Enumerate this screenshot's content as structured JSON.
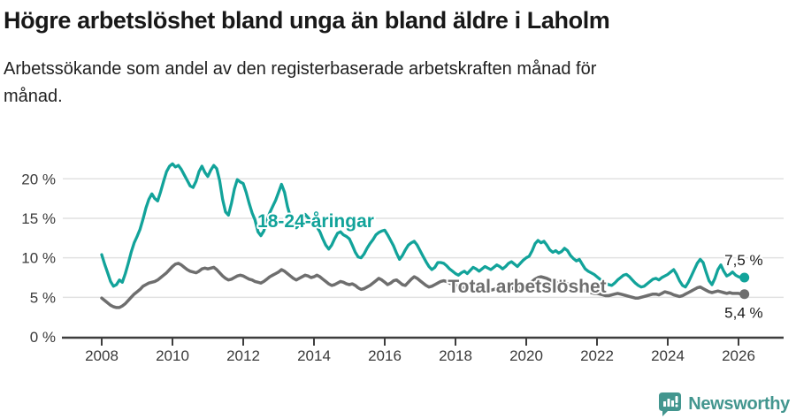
{
  "title": "Högre arbetslöshet bland unga än bland äldre i Laholm",
  "subtitle_lines": [
    "Arbetssökande som andel av den registerbaserade arbetskraften månad för",
    "månad."
  ],
  "colors": {
    "young_line": "#12a39a",
    "total_line": "#6e6e6e",
    "grid": "#e1e1e1",
    "axis": "#3d3d3d",
    "axis_text": "#3a3a3a",
    "value_text": "#1a1a1a",
    "brand": "#43968f"
  },
  "footer": {
    "brand_name": "Newsworthy",
    "brand_icon": "bar-chart-speech-bubble-icon"
  },
  "chart_data": {
    "type": "line",
    "title": "Högre arbetslöshet bland unga än bland äldre i Laholm",
    "subtitle": "Arbetssökande som andel av den registerbaserade arbetskraften månad för månad.",
    "x_unit": "month",
    "x_start_year": 2008,
    "x_ticks": [
      2008,
      2010,
      2012,
      2014,
      2016,
      2018,
      2020,
      2022,
      2024,
      2026
    ],
    "y_ticks": [
      {
        "v": 0,
        "label": "0 %"
      },
      {
        "v": 5,
        "label": "5 %"
      },
      {
        "v": 10,
        "label": "10 %"
      },
      {
        "v": 15,
        "label": "15 %"
      },
      {
        "v": 20,
        "label": "20 %"
      }
    ],
    "ylim": [
      0,
      22.8
    ],
    "grid": true,
    "legend_position": "inline-labels",
    "series": [
      {
        "name": "18-24-åringar",
        "end_label": "7,5 %",
        "end_value": 7.5,
        "values": [
          10.4,
          9.2,
          8.1,
          7.0,
          6.4,
          6.6,
          7.2,
          6.9,
          8.0,
          9.3,
          10.7,
          11.9,
          12.7,
          13.6,
          14.9,
          16.3,
          17.4,
          18.1,
          17.5,
          17.2,
          18.4,
          19.7,
          20.9,
          21.6,
          21.9,
          21.5,
          21.7,
          21.2,
          20.5,
          19.8,
          19.1,
          18.9,
          19.7,
          20.9,
          21.6,
          20.8,
          20.3,
          21.1,
          21.7,
          21.3,
          19.8,
          17.4,
          15.8,
          15.4,
          16.9,
          18.7,
          19.9,
          19.6,
          19.4,
          18.3,
          16.9,
          15.7,
          14.8,
          13.3,
          12.8,
          13.4,
          14.7,
          15.7,
          16.5,
          17.3,
          18.3,
          19.3,
          18.3,
          16.5,
          15.2,
          14.3,
          13.8,
          14.2,
          14.9,
          15.5,
          15.1,
          14.6,
          14.4,
          13.9,
          13.3,
          12.4,
          11.6,
          11.1,
          11.6,
          12.4,
          13.1,
          13.3,
          12.9,
          12.7,
          12.4,
          11.6,
          10.7,
          10.1,
          10.0,
          10.5,
          11.2,
          11.8,
          12.3,
          12.9,
          13.2,
          13.4,
          13.5,
          12.9,
          12.2,
          11.5,
          10.6,
          9.8,
          10.3,
          11.0,
          11.6,
          11.9,
          12.1,
          11.6,
          10.9,
          10.2,
          9.5,
          8.9,
          8.5,
          8.8,
          9.4,
          9.4,
          9.3,
          9.0,
          8.6,
          8.3,
          8.0,
          7.8,
          8.1,
          8.3,
          8.0,
          8.4,
          8.8,
          8.6,
          8.3,
          8.6,
          8.9,
          8.7,
          8.5,
          8.8,
          9.1,
          8.9,
          8.6,
          8.9,
          9.3,
          9.5,
          9.2,
          8.9,
          9.3,
          9.7,
          10.0,
          10.2,
          10.9,
          11.8,
          12.2,
          11.9,
          12.1,
          11.6,
          11.0,
          10.7,
          10.9,
          10.6,
          10.8,
          11.2,
          10.9,
          10.3,
          9.9,
          9.6,
          9.8,
          9.2,
          8.6,
          8.3,
          8.1,
          7.9,
          7.6,
          7.3,
          7.0,
          6.8,
          6.6,
          6.5,
          6.8,
          7.2,
          7.5,
          7.8,
          7.9,
          7.6,
          7.2,
          6.8,
          6.5,
          6.3,
          6.4,
          6.7,
          7.0,
          7.3,
          7.4,
          7.2,
          7.5,
          7.7,
          7.9,
          8.2,
          8.5,
          7.9,
          7.1,
          6.5,
          6.3,
          6.9,
          7.7,
          8.5,
          9.3,
          9.8,
          9.4,
          8.2,
          7.1,
          6.6,
          7.4,
          8.5,
          9.1,
          8.3,
          7.7,
          7.9,
          8.2,
          7.8,
          7.6,
          7.5,
          7.5
        ]
      },
      {
        "name": "Total arbetslöshet",
        "end_label": "5,4 %",
        "end_value": 5.4,
        "values": [
          4.9,
          4.6,
          4.3,
          4.0,
          3.8,
          3.7,
          3.7,
          3.9,
          4.2,
          4.6,
          5.0,
          5.4,
          5.7,
          6.0,
          6.4,
          6.6,
          6.8,
          6.9,
          7.0,
          7.2,
          7.5,
          7.8,
          8.1,
          8.5,
          8.9,
          9.2,
          9.3,
          9.1,
          8.8,
          8.5,
          8.3,
          8.2,
          8.1,
          8.3,
          8.6,
          8.7,
          8.6,
          8.7,
          8.8,
          8.5,
          8.1,
          7.7,
          7.4,
          7.2,
          7.3,
          7.5,
          7.7,
          7.8,
          7.7,
          7.5,
          7.3,
          7.2,
          7.0,
          6.9,
          6.8,
          7.0,
          7.3,
          7.6,
          7.8,
          8.0,
          8.2,
          8.5,
          8.3,
          8.0,
          7.7,
          7.4,
          7.2,
          7.4,
          7.6,
          7.8,
          7.7,
          7.5,
          7.6,
          7.8,
          7.6,
          7.3,
          7.0,
          6.7,
          6.5,
          6.6,
          6.8,
          7.0,
          6.9,
          6.7,
          6.6,
          6.7,
          6.5,
          6.2,
          6.0,
          6.1,
          6.3,
          6.5,
          6.8,
          7.1,
          7.4,
          7.2,
          6.9,
          6.6,
          6.8,
          7.1,
          7.2,
          6.9,
          6.6,
          6.5,
          6.9,
          7.3,
          7.6,
          7.4,
          7.1,
          6.8,
          6.5,
          6.3,
          6.4,
          6.6,
          6.8,
          7.0,
          7.1,
          7.0,
          6.8,
          6.6,
          6.5,
          6.4,
          6.3,
          6.2,
          6.1,
          6.0,
          6.1,
          6.2,
          6.3,
          6.2,
          6.1,
          6.0,
          5.9,
          6.0,
          6.1,
          6.0,
          5.8,
          5.9,
          6.0,
          6.1,
          6.2,
          6.1,
          6.2,
          6.3,
          6.5,
          6.7,
          7.0,
          7.3,
          7.5,
          7.6,
          7.5,
          7.4,
          7.2,
          7.0,
          6.9,
          6.8,
          6.7,
          6.8,
          6.7,
          6.5,
          6.3,
          6.1,
          6.0,
          5.9,
          5.8,
          5.7,
          5.6,
          5.5,
          5.5,
          5.4,
          5.3,
          5.2,
          5.2,
          5.3,
          5.4,
          5.5,
          5.4,
          5.3,
          5.2,
          5.1,
          5.0,
          4.9,
          4.9,
          5.0,
          5.1,
          5.2,
          5.3,
          5.4,
          5.4,
          5.3,
          5.5,
          5.7,
          5.6,
          5.5,
          5.3,
          5.2,
          5.1,
          5.2,
          5.4,
          5.6,
          5.8,
          6.0,
          6.2,
          6.3,
          6.1,
          5.9,
          5.7,
          5.6,
          5.7,
          5.8,
          5.7,
          5.6,
          5.5,
          5.6,
          5.5,
          5.5,
          5.5,
          5.4,
          5.4
        ]
      }
    ]
  }
}
